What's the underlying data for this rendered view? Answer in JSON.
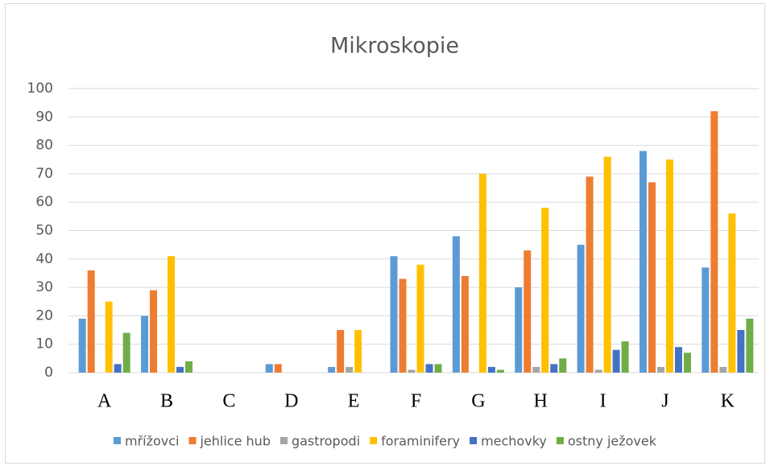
{
  "chart_data": {
    "type": "bar",
    "title": "Mikroskopie",
    "categories": [
      "A",
      "B",
      "C",
      "D",
      "E",
      "F",
      "G",
      "H",
      "I",
      "J",
      "K"
    ],
    "series": [
      {
        "name": "mřížovci",
        "color": "#5b9bd5",
        "values": [
          19,
          20,
          0,
          3,
          2,
          41,
          48,
          30,
          45,
          78,
          37
        ]
      },
      {
        "name": "jehlice hub",
        "color": "#ed7d31",
        "values": [
          36,
          29,
          0,
          3,
          15,
          33,
          34,
          43,
          69,
          67,
          92
        ]
      },
      {
        "name": "gastropodi",
        "color": "#a5a5a5",
        "values": [
          0,
          0,
          0,
          0,
          2,
          1,
          0,
          2,
          1,
          2,
          2
        ]
      },
      {
        "name": "foraminifery",
        "color": "#ffc000",
        "values": [
          25,
          41,
          0,
          0,
          15,
          38,
          70,
          58,
          76,
          75,
          56
        ]
      },
      {
        "name": "mechovky",
        "color": "#4472c4",
        "values": [
          3,
          2,
          0,
          0,
          0,
          3,
          2,
          3,
          8,
          9,
          15
        ]
      },
      {
        "name": "ostny ježovek",
        "color": "#70ad47",
        "values": [
          14,
          4,
          0,
          0,
          0,
          3,
          1,
          5,
          11,
          7,
          19
        ]
      }
    ],
    "ylim": [
      0,
      100
    ],
    "yticks": [
      0,
      10,
      20,
      30,
      40,
      50,
      60,
      70,
      80,
      90,
      100
    ],
    "grid": true,
    "legend": "bottom"
  }
}
